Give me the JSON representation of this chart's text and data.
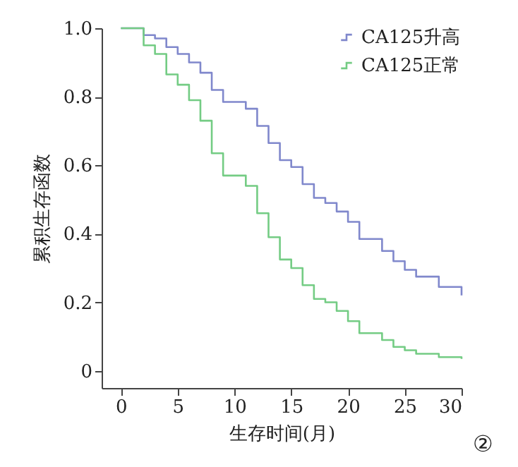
{
  "chart_data": {
    "type": "step",
    "xlabel": "生存时间(月)",
    "ylabel": "累积生存函数",
    "annotations": [
      "②"
    ],
    "xlim": [
      -1.7,
      30
    ],
    "ylim": [
      -0.05,
      1.0
    ],
    "xticks": [
      0,
      5,
      10,
      15,
      20,
      25,
      30
    ],
    "yticks": [
      {
        "value": 0,
        "label": "0"
      },
      {
        "value": 0.2,
        "label": "0.2"
      },
      {
        "value": 0.4,
        "label": "0.4"
      },
      {
        "value": 0.6,
        "label": "0.6"
      },
      {
        "value": 0.8,
        "label": "0.8"
      },
      {
        "value": 1,
        "label": "1.0"
      }
    ],
    "grid": false,
    "legend": "top right",
    "marker": "none",
    "line_style": "solid",
    "series": [
      {
        "name": "CA125升高",
        "color": "#8088cc",
        "x": [
          0,
          2,
          3,
          4,
          5,
          6,
          7,
          8,
          9,
          11,
          12,
          13,
          14,
          15,
          16,
          17,
          18,
          19,
          20,
          21,
          23,
          24,
          25,
          26,
          28,
          30
        ],
        "values": [
          1.0,
          0.98,
          0.97,
          0.945,
          0.925,
          0.9,
          0.87,
          0.82,
          0.785,
          0.765,
          0.715,
          0.665,
          0.615,
          0.595,
          0.545,
          0.505,
          0.49,
          0.465,
          0.435,
          0.385,
          0.35,
          0.32,
          0.295,
          0.275,
          0.245,
          0.22
        ]
      },
      {
        "name": "CA125正常",
        "color": "#74cc84",
        "x": [
          0,
          2,
          3,
          4,
          5,
          6,
          7,
          8,
          9,
          11,
          12,
          13,
          14,
          15,
          16,
          17,
          18,
          19,
          20,
          21,
          23,
          24,
          25,
          26,
          28,
          30
        ],
        "values": [
          1.0,
          0.95,
          0.925,
          0.865,
          0.835,
          0.79,
          0.73,
          0.635,
          0.57,
          0.54,
          0.46,
          0.39,
          0.325,
          0.3,
          0.25,
          0.21,
          0.2,
          0.175,
          0.145,
          0.11,
          0.09,
          0.07,
          0.06,
          0.05,
          0.04,
          0.035
        ]
      }
    ]
  }
}
